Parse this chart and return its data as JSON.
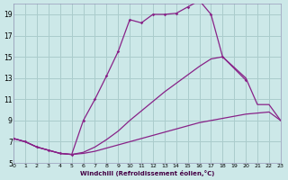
{
  "xlabel": "Windchill (Refroidissement éolien,°C)",
  "bg_color": "#cce8e8",
  "grid_color": "#aacccc",
  "line_color": "#882288",
  "xlim": [
    0,
    23
  ],
  "ylim": [
    5,
    20
  ],
  "yticks": [
    5,
    7,
    9,
    11,
    13,
    15,
    17,
    19
  ],
  "xticks": [
    0,
    1,
    2,
    3,
    4,
    5,
    6,
    7,
    8,
    9,
    10,
    11,
    12,
    13,
    14,
    15,
    16,
    17,
    18,
    19,
    20,
    21,
    22,
    23
  ],
  "line_bottom_x": [
    0,
    1,
    2,
    3,
    4,
    5,
    6,
    7,
    8,
    9,
    10,
    11,
    12,
    13,
    14,
    15,
    16,
    17,
    18,
    19,
    20,
    21,
    22,
    23
  ],
  "line_bottom_y": [
    7.3,
    7.0,
    6.5,
    6.2,
    5.9,
    5.8,
    5.9,
    6.1,
    6.4,
    6.7,
    7.0,
    7.3,
    7.6,
    7.9,
    8.2,
    8.5,
    8.8,
    9.0,
    9.2,
    9.4,
    9.6,
    9.7,
    9.8,
    9.0
  ],
  "line_mid_x": [
    0,
    1,
    2,
    3,
    4,
    5,
    6,
    7,
    8,
    9,
    10,
    11,
    12,
    13,
    14,
    15,
    16,
    17,
    18,
    19,
    20,
    21,
    22,
    23
  ],
  "line_mid_y": [
    7.3,
    7.0,
    6.5,
    6.2,
    5.9,
    5.8,
    6.0,
    6.5,
    7.2,
    8.0,
    9.0,
    9.9,
    10.8,
    11.7,
    12.5,
    13.3,
    14.1,
    14.8,
    15.0,
    14.0,
    13.0,
    10.5,
    10.5,
    9.0
  ],
  "line_top_x": [
    0,
    1,
    2,
    3,
    4,
    5,
    6,
    7,
    8,
    9,
    10,
    11,
    12,
    13,
    14,
    15,
    16,
    17,
    18,
    20
  ],
  "line_top_y": [
    7.3,
    7.0,
    6.5,
    6.2,
    5.9,
    5.8,
    9.0,
    11.0,
    13.2,
    15.5,
    18.5,
    18.2,
    19.0,
    19.0,
    19.1,
    19.7,
    20.3,
    19.0,
    15.0,
    12.8
  ]
}
